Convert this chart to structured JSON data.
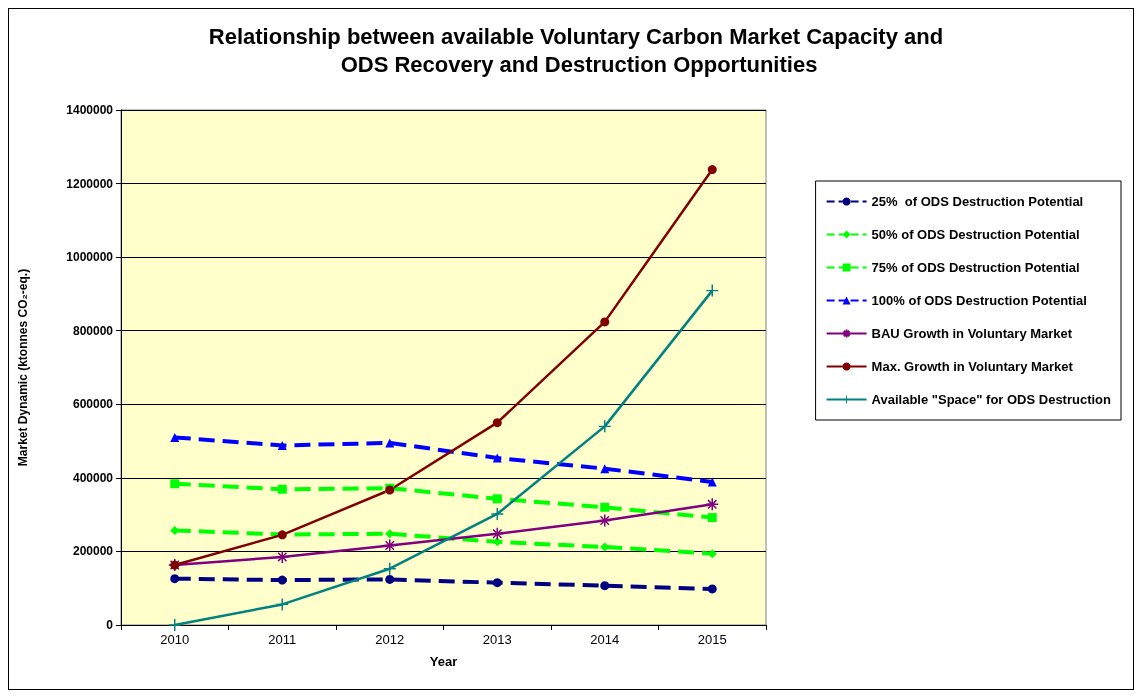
{
  "chart_data": {
    "type": "line",
    "title": "Relationship between available Voluntary Carbon Market Capacity and ODS Recovery and Destruction Opportunities",
    "xlabel": "Year",
    "ylabel": "Market Dynamic (ktonnes CO₂-eq.)",
    "categories": [
      "2010",
      "2011",
      "2012",
      "2013",
      "2014",
      "2015"
    ],
    "ylim": [
      0,
      1400000
    ],
    "yticks": [
      0,
      200000,
      400000,
      600000,
      800000,
      1000000,
      1200000,
      1400000
    ],
    "grid": "y",
    "legend": "right",
    "series": [
      {
        "name": "25%  of ODS Destruction Potential",
        "color": "#000080",
        "marker": "circle",
        "line_style": "dashed",
        "values": [
          126000,
          122000,
          124000,
          115000,
          107000,
          98000
        ]
      },
      {
        "name": "50% of ODS Destruction Potential",
        "color": "#00ff00",
        "marker": "diamond",
        "line_style": "dashed",
        "values": [
          257000,
          246000,
          248000,
          226000,
          212000,
          194000
        ]
      },
      {
        "name": "75% of ODS Destruction Potential",
        "color": "#00ff00",
        "marker": "square",
        "line_style": "dashed",
        "values": [
          384000,
          369000,
          372000,
          343000,
          320000,
          292000
        ]
      },
      {
        "name": "100% of ODS Destruction Potential",
        "color": "#0000ff",
        "marker": "triangle",
        "line_style": "dashed",
        "values": [
          510000,
          488000,
          495000,
          454000,
          425000,
          389000
        ]
      },
      {
        "name": "BAU Growth in Voluntary Market",
        "color": "#800080",
        "marker": "star",
        "line_style": "solid",
        "values": [
          163000,
          185000,
          216000,
          248000,
          284000,
          328000
        ]
      },
      {
        "name": "Max. Growth in Voluntary Market",
        "color": "#800000",
        "marker": "circle",
        "line_style": "solid",
        "values": [
          163000,
          245000,
          367000,
          550000,
          824000,
          1238000
        ]
      },
      {
        "name": "Available \"Space\" for ODS Destruction",
        "color": "#008080",
        "marker": "cross",
        "line_style": "solid",
        "values": [
          0,
          56000,
          153000,
          302000,
          540000,
          909000
        ]
      }
    ]
  }
}
